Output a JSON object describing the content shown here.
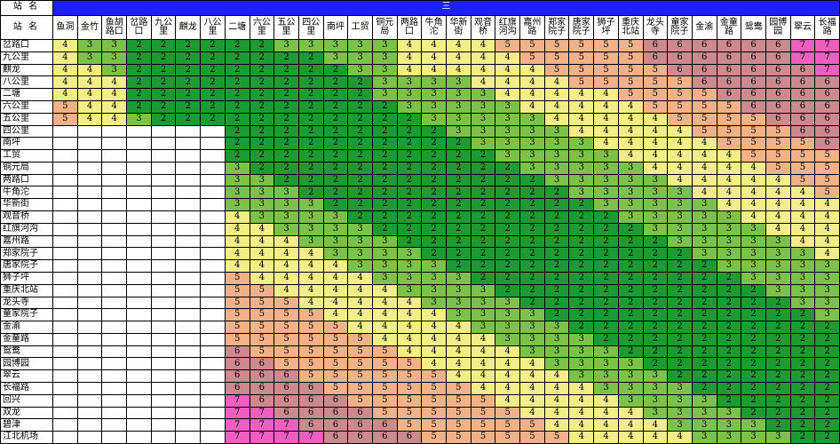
{
  "banner_label": "三",
  "corner_top": "站 名",
  "corner_bottom": "站 名",
  "stations": [
    "鱼洞",
    "金竹",
    "鱼胡\n路口",
    "岔路\n口",
    "九公\n里",
    "麒龙",
    "八公\n里",
    "二塘",
    "六公\n里",
    "五公\n里",
    "四公\n里",
    "南坪",
    "工贸",
    "铜元\n局",
    "两路\n口",
    "牛角\n沱",
    "华新\n街",
    "观音\n桥",
    "红旗\n河沟",
    "嘉州\n路",
    "郑家\n院子",
    "唐家\n院子",
    "狮子\n坪",
    "重庆\n北站",
    "龙头\n寺",
    "童家\n院子",
    "金渝",
    "金童\n路",
    "鸳鸯",
    "园博\n园",
    "翠云",
    "长福\n路"
  ],
  "rows": [
    {
      "name": "岔路口",
      "fares": [
        4,
        3,
        3,
        2,
        2,
        2,
        2,
        2,
        2,
        3,
        3,
        3,
        3,
        3,
        4,
        4,
        4,
        4,
        5,
        5,
        5,
        5,
        5,
        5,
        6,
        6,
        6,
        6,
        6,
        6,
        7,
        7
      ]
    },
    {
      "name": "九公里",
      "fares": [
        4,
        3,
        3,
        2,
        2,
        2,
        2,
        2,
        2,
        2,
        2,
        3,
        3,
        3,
        4,
        4,
        4,
        4,
        4,
        5,
        5,
        5,
        5,
        5,
        6,
        6,
        6,
        6,
        6,
        6,
        7,
        7
      ]
    },
    {
      "name": "麒龙",
      "fares": [
        4,
        4,
        3,
        2,
        2,
        2,
        2,
        2,
        2,
        2,
        2,
        2,
        3,
        3,
        4,
        4,
        4,
        4,
        4,
        4,
        5,
        5,
        5,
        5,
        5,
        6,
        6,
        6,
        6,
        6,
        6,
        7
      ]
    },
    {
      "name": "八公里",
      "fares": [
        4,
        4,
        4,
        2,
        2,
        2,
        2,
        2,
        2,
        2,
        2,
        2,
        2,
        3,
        3,
        3,
        3,
        4,
        4,
        4,
        4,
        5,
        5,
        5,
        5,
        5,
        6,
        6,
        6,
        6,
        6,
        6
      ]
    },
    {
      "name": "二塘",
      "fares": [
        4,
        4,
        4,
        2,
        2,
        2,
        2,
        2,
        2,
        2,
        2,
        2,
        2,
        3,
        3,
        3,
        3,
        3,
        4,
        4,
        4,
        4,
        4,
        5,
        5,
        5,
        5,
        6,
        6,
        6,
        6,
        6
      ]
    },
    {
      "name": "六公里",
      "fares": [
        5,
        4,
        4,
        2,
        2,
        2,
        2,
        2,
        2,
        2,
        2,
        2,
        2,
        2,
        3,
        3,
        3,
        3,
        3,
        4,
        4,
        4,
        4,
        4,
        5,
        5,
        5,
        5,
        6,
        6,
        6,
        6
      ]
    },
    {
      "name": "五公里",
      "fares": [
        5,
        4,
        4,
        3,
        2,
        2,
        2,
        2,
        2,
        2,
        2,
        2,
        2,
        2,
        2,
        3,
        3,
        3,
        3,
        3,
        4,
        4,
        4,
        4,
        4,
        5,
        5,
        5,
        5,
        6,
        6,
        6
      ]
    },
    {
      "name": "四公里",
      "fares": [
        null,
        null,
        null,
        null,
        null,
        null,
        null,
        2,
        2,
        2,
        2,
        2,
        2,
        2,
        2,
        2,
        3,
        3,
        3,
        3,
        3,
        4,
        4,
        4,
        4,
        4,
        5,
        5,
        5,
        5,
        6,
        6
      ]
    },
    {
      "name": "南坪",
      "fares": [
        null,
        null,
        null,
        null,
        null,
        null,
        null,
        2,
        2,
        2,
        2,
        2,
        2,
        2,
        2,
        2,
        2,
        3,
        3,
        3,
        3,
        3,
        4,
        4,
        4,
        4,
        4,
        5,
        5,
        5,
        5,
        6
      ]
    },
    {
      "name": "工贸",
      "fares": [
        null,
        null,
        null,
        null,
        null,
        null,
        null,
        2,
        2,
        2,
        2,
        2,
        2,
        2,
        2,
        2,
        2,
        2,
        3,
        3,
        3,
        3,
        3,
        4,
        4,
        4,
        4,
        4,
        5,
        5,
        5,
        5
      ]
    },
    {
      "name": "铜元局",
      "fares": [
        null,
        null,
        null,
        null,
        null,
        null,
        null,
        3,
        2,
        2,
        2,
        2,
        2,
        2,
        2,
        2,
        2,
        2,
        2,
        3,
        3,
        3,
        3,
        3,
        4,
        4,
        4,
        4,
        4,
        5,
        5,
        5
      ]
    },
    {
      "name": "两路口",
      "fares": [
        null,
        null,
        null,
        null,
        null,
        null,
        null,
        3,
        3,
        2,
        2,
        2,
        2,
        2,
        2,
        2,
        2,
        2,
        2,
        2,
        3,
        3,
        3,
        3,
        3,
        4,
        4,
        4,
        4,
        4,
        5,
        5
      ]
    },
    {
      "name": "牛角沱",
      "fares": [
        null,
        null,
        null,
        null,
        null,
        null,
        null,
        3,
        3,
        3,
        2,
        2,
        2,
        2,
        2,
        2,
        2,
        2,
        2,
        2,
        2,
        3,
        3,
        3,
        3,
        3,
        4,
        4,
        4,
        4,
        4,
        5
      ]
    },
    {
      "name": "华新街",
      "fares": [
        null,
        null,
        null,
        null,
        null,
        null,
        null,
        3,
        3,
        3,
        3,
        2,
        2,
        2,
        2,
        2,
        2,
        2,
        2,
        2,
        2,
        2,
        3,
        3,
        3,
        3,
        3,
        4,
        4,
        4,
        4,
        4
      ]
    },
    {
      "name": "观音桥",
      "fares": [
        null,
        null,
        null,
        null,
        null,
        null,
        null,
        4,
        3,
        3,
        3,
        3,
        2,
        2,
        2,
        2,
        2,
        2,
        2,
        2,
        2,
        2,
        2,
        3,
        3,
        3,
        3,
        3,
        4,
        4,
        4,
        4
      ]
    },
    {
      "name": "红旗河沟",
      "fares": [
        null,
        null,
        null,
        null,
        null,
        null,
        null,
        4,
        4,
        3,
        3,
        3,
        3,
        2,
        2,
        2,
        2,
        2,
        2,
        2,
        2,
        2,
        2,
        2,
        3,
        3,
        3,
        3,
        3,
        4,
        4,
        4
      ]
    },
    {
      "name": "嘉州路",
      "fares": [
        null,
        null,
        null,
        null,
        null,
        null,
        null,
        4,
        4,
        4,
        3,
        3,
        3,
        3,
        2,
        2,
        2,
        2,
        2,
        2,
        2,
        2,
        2,
        2,
        2,
        3,
        3,
        3,
        3,
        3,
        4,
        4
      ]
    },
    {
      "name": "郑家院子",
      "fares": [
        null,
        null,
        null,
        null,
        null,
        null,
        null,
        4,
        4,
        4,
        4,
        3,
        3,
        3,
        3,
        2,
        2,
        2,
        2,
        2,
        2,
        2,
        2,
        2,
        2,
        2,
        3,
        3,
        3,
        3,
        3,
        4
      ]
    },
    {
      "name": "唐家院子",
      "fares": [
        null,
        null,
        null,
        null,
        null,
        null,
        null,
        4,
        4,
        4,
        4,
        4,
        3,
        3,
        3,
        3,
        2,
        2,
        2,
        2,
        2,
        2,
        2,
        2,
        2,
        2,
        2,
        3,
        3,
        3,
        3,
        3
      ]
    },
    {
      "name": "狮子坪",
      "fares": [
        null,
        null,
        null,
        null,
        null,
        null,
        null,
        5,
        4,
        4,
        4,
        4,
        4,
        3,
        3,
        3,
        3,
        2,
        2,
        2,
        2,
        2,
        2,
        2,
        2,
        2,
        2,
        2,
        3,
        3,
        3,
        3
      ]
    },
    {
      "name": "重庆北站",
      "fares": [
        null,
        null,
        null,
        null,
        null,
        null,
        null,
        5,
        5,
        4,
        4,
        4,
        4,
        4,
        3,
        3,
        3,
        3,
        2,
        2,
        2,
        2,
        2,
        2,
        2,
        2,
        2,
        2,
        2,
        3,
        3,
        3
      ]
    },
    {
      "name": "龙头寺",
      "fares": [
        null,
        null,
        null,
        null,
        null,
        null,
        null,
        5,
        5,
        5,
        4,
        4,
        4,
        4,
        4,
        3,
        3,
        3,
        3,
        2,
        2,
        2,
        2,
        2,
        2,
        2,
        2,
        2,
        2,
        2,
        3,
        3
      ]
    },
    {
      "name": "童家院子",
      "fares": [
        null,
        null,
        null,
        null,
        null,
        null,
        null,
        5,
        5,
        5,
        5,
        4,
        4,
        4,
        4,
        4,
        3,
        3,
        3,
        3,
        2,
        2,
        2,
        2,
        2,
        2,
        2,
        2,
        2,
        2,
        2,
        3
      ]
    },
    {
      "name": "金渝",
      "fares": [
        null,
        null,
        null,
        null,
        null,
        null,
        null,
        5,
        5,
        5,
        5,
        5,
        4,
        4,
        4,
        4,
        4,
        3,
        3,
        3,
        3,
        2,
        2,
        2,
        2,
        2,
        2,
        2,
        2,
        2,
        2,
        2
      ]
    },
    {
      "name": "金童路",
      "fares": [
        null,
        null,
        null,
        null,
        null,
        null,
        null,
        5,
        5,
        5,
        5,
        5,
        5,
        4,
        4,
        4,
        4,
        4,
        3,
        3,
        3,
        3,
        2,
        2,
        2,
        2,
        2,
        2,
        2,
        2,
        2,
        2
      ]
    },
    {
      "name": "鸳鸯",
      "fares": [
        null,
        null,
        null,
        null,
        null,
        null,
        null,
        6,
        5,
        5,
        5,
        5,
        5,
        5,
        4,
        4,
        4,
        4,
        4,
        3,
        3,
        3,
        3,
        2,
        2,
        2,
        2,
        2,
        2,
        2,
        2,
        2
      ]
    },
    {
      "name": "园博园",
      "fares": [
        null,
        null,
        null,
        null,
        null,
        null,
        null,
        6,
        6,
        5,
        5,
        5,
        5,
        5,
        5,
        4,
        4,
        4,
        4,
        4,
        3,
        3,
        3,
        3,
        2,
        2,
        2,
        2,
        2,
        2,
        2,
        2
      ]
    },
    {
      "name": "翠云",
      "fares": [
        null,
        null,
        null,
        null,
        null,
        null,
        null,
        6,
        6,
        6,
        5,
        5,
        5,
        5,
        5,
        5,
        4,
        4,
        4,
        4,
        4,
        3,
        3,
        3,
        3,
        2,
        2,
        2,
        2,
        2,
        2,
        2
      ]
    },
    {
      "name": "长福路",
      "fares": [
        null,
        null,
        null,
        null,
        null,
        null,
        null,
        6,
        6,
        6,
        6,
        5,
        5,
        5,
        5,
        5,
        5,
        4,
        4,
        4,
        4,
        4,
        3,
        3,
        3,
        3,
        2,
        2,
        2,
        2,
        2,
        2
      ]
    },
    {
      "name": "回兴",
      "fares": [
        null,
        null,
        null,
        null,
        null,
        null,
        null,
        7,
        6,
        6,
        6,
        6,
        5,
        5,
        5,
        5,
        5,
        5,
        4,
        4,
        4,
        4,
        4,
        3,
        3,
        3,
        3,
        2,
        2,
        2,
        2,
        2
      ]
    },
    {
      "name": "双龙",
      "fares": [
        null,
        null,
        null,
        null,
        null,
        null,
        null,
        7,
        7,
        6,
        6,
        6,
        6,
        5,
        5,
        5,
        5,
        5,
        5,
        4,
        4,
        4,
        4,
        4,
        3,
        3,
        3,
        3,
        2,
        2,
        2,
        2
      ]
    },
    {
      "name": "碧津",
      "fares": [
        null,
        null,
        null,
        null,
        null,
        null,
        null,
        7,
        7,
        7,
        6,
        6,
        6,
        6,
        5,
        5,
        5,
        5,
        5,
        5,
        4,
        4,
        4,
        4,
        4,
        3,
        3,
        3,
        3,
        2,
        2,
        2
      ]
    },
    {
      "name": "江北机场",
      "fares": [
        null,
        null,
        null,
        null,
        null,
        null,
        null,
        7,
        7,
        7,
        7,
        6,
        6,
        6,
        6,
        5,
        5,
        5,
        5,
        5,
        5,
        4,
        4,
        4,
        4,
        4,
        3,
        3,
        3,
        3,
        2,
        2
      ]
    }
  ],
  "fare_colors": {
    "2": "#1e9a33",
    "3": "#7cc14a",
    "4": "#f3ee8a",
    "5": "#f1b28a",
    "6": "#cc8a8f",
    "7": "#f05fbf"
  }
}
